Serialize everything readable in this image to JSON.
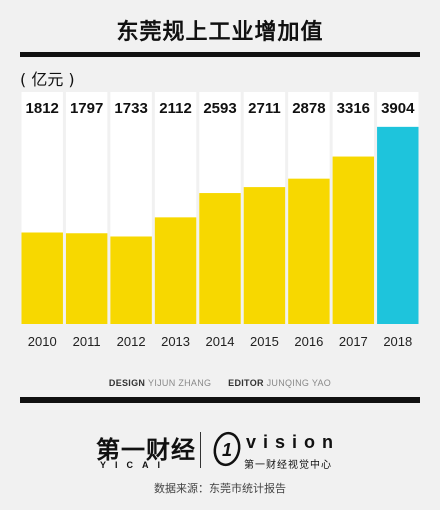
{
  "header": {
    "title": "东莞规上工业增加值",
    "unit": "( 亿元 )"
  },
  "chart_data": {
    "type": "bar",
    "title": "东莞规上工业增加值",
    "xlabel": "",
    "ylabel": "( 亿元 )",
    "categories": [
      "2010",
      "2011",
      "2012",
      "2013",
      "2014",
      "2015",
      "2016",
      "2017",
      "2018"
    ],
    "values": [
      1812,
      1797,
      1733,
      2112,
      2593,
      2711,
      2878,
      3316,
      3904
    ],
    "value_labels": [
      "1812",
      "1797",
      "1733",
      "2112",
      "2593",
      "2711",
      "2878",
      "3316",
      "3904"
    ],
    "ylim": [
      0,
      4000
    ],
    "grid": false,
    "legend": "none",
    "colors": {
      "bar": "#f7d800",
      "highlight": "#1ec4dc",
      "highlight_category": "2018",
      "panel": "#ffffff",
      "label": "#111111"
    }
  },
  "credits": {
    "design_label": "DESIGN",
    "design_name": "YIJUN ZHANG",
    "editor_label": "EDITOR",
    "editor_name": "JUNQING YAO"
  },
  "logos": {
    "brand_cn": "第一财经",
    "brand_cn_sub": "YICAI",
    "vision_mark": "1",
    "vision_word": "vision",
    "vision_cn": "第一财经视觉中心"
  },
  "footer": {
    "source": "数据来源：东莞市统计报告"
  }
}
